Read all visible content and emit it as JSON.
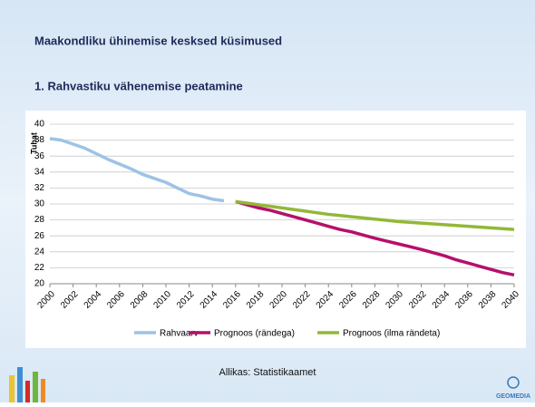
{
  "header": {
    "title": "Maakondliku ühinemise kesksed küsimused",
    "subtitle": "1. Rahvastiku vähenemise peatamine"
  },
  "chart_data": {
    "type": "line",
    "y_label": "Tuhat",
    "x": [
      2000,
      2001,
      2002,
      2003,
      2004,
      2005,
      2006,
      2007,
      2008,
      2009,
      2010,
      2011,
      2012,
      2013,
      2014,
      2015,
      2016,
      2017,
      2018,
      2019,
      2020,
      2021,
      2022,
      2023,
      2024,
      2025,
      2026,
      2027,
      2028,
      2029,
      2030,
      2031,
      2032,
      2033,
      2034,
      2035,
      2036,
      2037,
      2038,
      2039,
      2040
    ],
    "xlim": [
      2000,
      2040
    ],
    "xticks": [
      2000,
      2002,
      2004,
      2006,
      2008,
      2010,
      2012,
      2014,
      2016,
      2018,
      2020,
      2022,
      2024,
      2026,
      2028,
      2030,
      2032,
      2034,
      2036,
      2038,
      2040
    ],
    "ylim": [
      20,
      40
    ],
    "yticks": [
      20,
      22,
      24,
      26,
      28,
      30,
      32,
      34,
      36,
      38,
      40
    ],
    "grid": true,
    "legend": "bottom",
    "series": [
      {
        "name": "Rahvaarv",
        "color": "#9dc3e6",
        "values": [
          38.2,
          38.0,
          37.5,
          37.0,
          36.3,
          35.6,
          35.0,
          34.4,
          33.7,
          33.2,
          32.7,
          32.0,
          31.3,
          31.0,
          30.6,
          30.4,
          null,
          null,
          null,
          null,
          null,
          null,
          null,
          null,
          null,
          null,
          null,
          null,
          null,
          null,
          null,
          null,
          null,
          null,
          null,
          null,
          null,
          null,
          null,
          null,
          null
        ]
      },
      {
        "name": "Prognoos (rändega)",
        "color": "#b5106b",
        "values": [
          null,
          null,
          null,
          null,
          null,
          null,
          null,
          null,
          null,
          null,
          null,
          null,
          null,
          null,
          null,
          null,
          30.3,
          29.9,
          29.5,
          29.2,
          28.8,
          28.4,
          28.0,
          27.6,
          27.2,
          26.8,
          26.5,
          26.1,
          25.7,
          25.35,
          25.0,
          24.65,
          24.3,
          23.9,
          23.5,
          23.0,
          22.6,
          22.2,
          21.8,
          21.4,
          21.1
        ]
      },
      {
        "name": "Prognoos (ilma rändeta)",
        "color": "#92b837",
        "values": [
          null,
          null,
          null,
          null,
          null,
          null,
          null,
          null,
          null,
          null,
          null,
          null,
          null,
          null,
          null,
          null,
          30.3,
          30.1,
          29.9,
          29.7,
          29.5,
          29.3,
          29.1,
          28.9,
          28.7,
          28.55,
          28.4,
          28.25,
          28.1,
          27.95,
          27.8,
          27.7,
          27.6,
          27.5,
          27.4,
          27.3,
          27.2,
          27.1,
          27.0,
          26.9,
          26.8
        ]
      }
    ]
  },
  "footer": {
    "source": "Allikas: Statistikaamet",
    "logo": "GEOMEDIA"
  }
}
